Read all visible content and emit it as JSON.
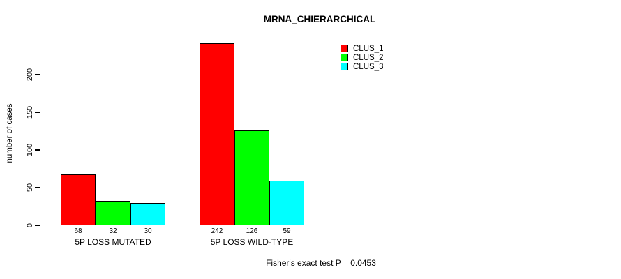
{
  "chart_data": {
    "type": "bar",
    "title": "MRNA_CHIERARCHICAL",
    "ylabel": "number of cases",
    "xlabel": "",
    "categories": [
      "5P LOSS MUTATED",
      "5P LOSS WILD-TYPE"
    ],
    "series": [
      {
        "name": "CLUS_1",
        "color": "#FF0000",
        "values": [
          68,
          242
        ]
      },
      {
        "name": "CLUS_2",
        "color": "#00FF00",
        "values": [
          32,
          126
        ]
      },
      {
        "name": "CLUS_3",
        "color": "#00FFFF",
        "values": [
          30,
          59
        ]
      }
    ],
    "yticks": [
      0,
      50,
      100,
      150,
      200
    ],
    "ylim": [
      0,
      245
    ],
    "grid": false,
    "bar_value_labels": [
      [
        68,
        32,
        30
      ],
      [
        242,
        126,
        59
      ]
    ],
    "legend_position": "top-right",
    "legend_entries": [
      "CLUS_1",
      "CLUS_2",
      "CLUS_3"
    ],
    "annotation": "Fisher's exact test P = 0.0453",
    "colors": {
      "background": "#FFFFFF",
      "text": "#000000",
      "axis": "#000000"
    }
  }
}
